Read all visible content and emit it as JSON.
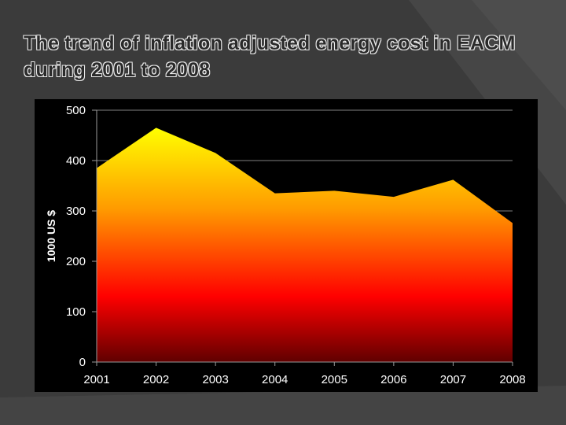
{
  "slide": {
    "title": "The trend of inflation adjusted energy cost in EACM during 2001 to 2008",
    "background_color": "#3b3b3b"
  },
  "chart_data": {
    "type": "area",
    "title": "",
    "xlabel": "",
    "ylabel": "1000 US $",
    "x": [
      "2001",
      "2002",
      "2003",
      "2004",
      "2005",
      "2006",
      "2007",
      "2008"
    ],
    "series": [
      {
        "values": [
          385,
          465,
          415,
          335,
          340,
          328,
          362,
          276
        ]
      }
    ],
    "ylim": [
      0,
      500
    ],
    "yticks": [
      0,
      100,
      200,
      300,
      400,
      500
    ],
    "grid": true,
    "legend": "none",
    "fill_gradient": [
      "#ffff00",
      "#ff9900",
      "#ff0000",
      "#600000"
    ],
    "plot_background": "#000000"
  }
}
